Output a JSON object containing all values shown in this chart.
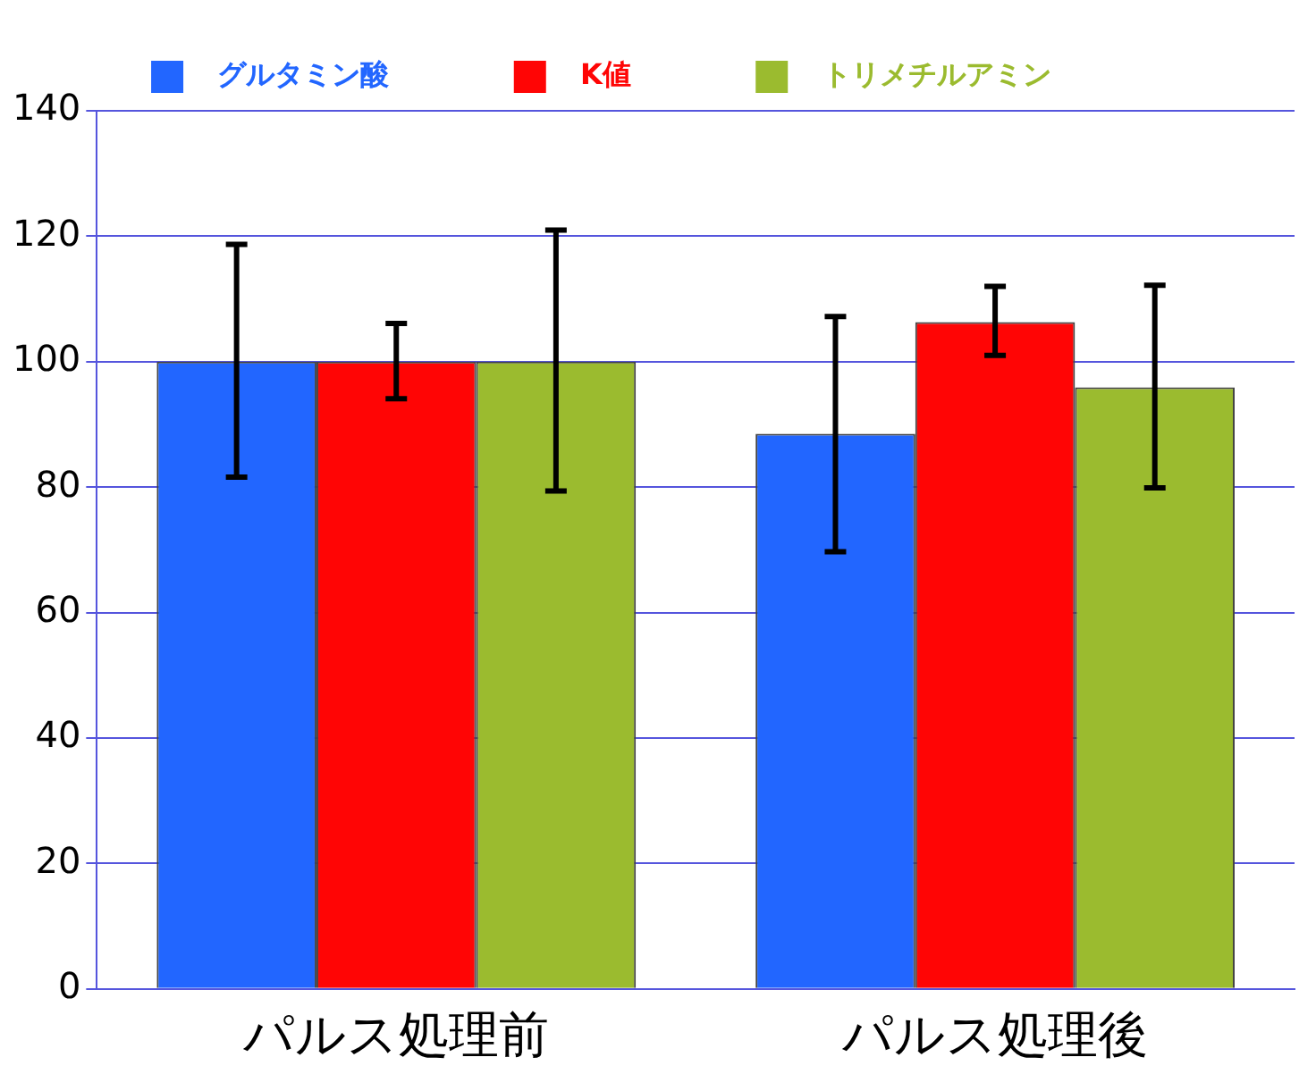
{
  "chart_data": {
    "type": "bar",
    "categories": [
      "パルス処理前",
      "パルス処理後"
    ],
    "series": [
      {
        "name": "グルタミン酸",
        "color": "#2266ff",
        "values": [
          100,
          88.5
        ],
        "errors": [
          [
            81.6,
            118.7
          ],
          [
            69.7,
            107.2
          ]
        ]
      },
      {
        "name": "K値",
        "color": "#ff0505",
        "values": [
          100,
          106.3
        ],
        "errors": [
          [
            94.1,
            106.1
          ],
          [
            101,
            112
          ]
        ]
      },
      {
        "name": "トリメチルアミン",
        "color": "#9bbb2f",
        "values": [
          100,
          95.9
        ],
        "errors": [
          [
            79.4,
            121
          ],
          [
            79.9,
            112.2
          ]
        ]
      }
    ],
    "ylim": [
      0,
      140
    ],
    "yticks": [
      0,
      20,
      40,
      60,
      80,
      100,
      120,
      140
    ],
    "grid": "y",
    "legend": "top"
  }
}
